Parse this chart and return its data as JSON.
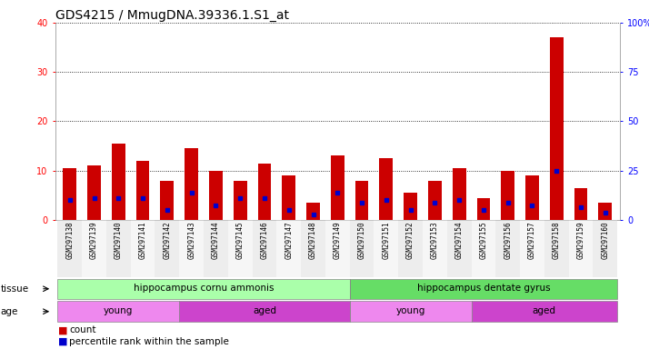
{
  "title": "GDS4215 / MmugDNA.39336.1.S1_at",
  "samples": [
    "GSM297138",
    "GSM297139",
    "GSM297140",
    "GSM297141",
    "GSM297142",
    "GSM297143",
    "GSM297144",
    "GSM297145",
    "GSM297146",
    "GSM297147",
    "GSM297148",
    "GSM297149",
    "GSM297150",
    "GSM297151",
    "GSM297152",
    "GSM297153",
    "GSM297154",
    "GSM297155",
    "GSM297156",
    "GSM297157",
    "GSM297158",
    "GSM297159",
    "GSM297160"
  ],
  "count_values": [
    10.5,
    11.0,
    15.5,
    12.0,
    8.0,
    14.5,
    10.0,
    8.0,
    11.5,
    9.0,
    3.5,
    13.0,
    8.0,
    12.5,
    5.5,
    8.0,
    10.5,
    4.5,
    10.0,
    9.0,
    37.0,
    6.5,
    3.5
  ],
  "blue_dot_positions": [
    4.0,
    4.5,
    4.5,
    4.5,
    2.0,
    5.5,
    3.0,
    4.5,
    4.5,
    2.0,
    1.0,
    5.5,
    3.5,
    4.0,
    2.0,
    3.5,
    4.0,
    2.0,
    3.5,
    3.0,
    10.0,
    2.5,
    1.5
  ],
  "bar_color": "#cc0000",
  "dot_color": "#0000cc",
  "ylim_left": [
    0,
    40
  ],
  "ylim_right": [
    0,
    100
  ],
  "yticks_left": [
    0,
    10,
    20,
    30,
    40
  ],
  "yticks_right": [
    0,
    25,
    50,
    75,
    100
  ],
  "tissue_groups": [
    {
      "label": "hippocampus cornu ammonis",
      "start": 0,
      "end": 11,
      "color": "#aaffaa"
    },
    {
      "label": "hippocampus dentate gyrus",
      "start": 12,
      "end": 22,
      "color": "#66dd66"
    }
  ],
  "age_groups": [
    {
      "label": "young",
      "start": 0,
      "end": 4,
      "color": "#ee88ee"
    },
    {
      "label": "aged",
      "start": 5,
      "end": 11,
      "color": "#cc44cc"
    },
    {
      "label": "young",
      "start": 12,
      "end": 16,
      "color": "#ee88ee"
    },
    {
      "label": "aged",
      "start": 17,
      "end": 22,
      "color": "#cc44cc"
    }
  ],
  "gap_color": "#bbbbbb",
  "title_fontsize": 10,
  "tick_fontsize": 7,
  "sample_fontsize": 5.5,
  "row_fontsize": 7.5,
  "legend_fontsize": 7.5,
  "bar_width": 0.55
}
